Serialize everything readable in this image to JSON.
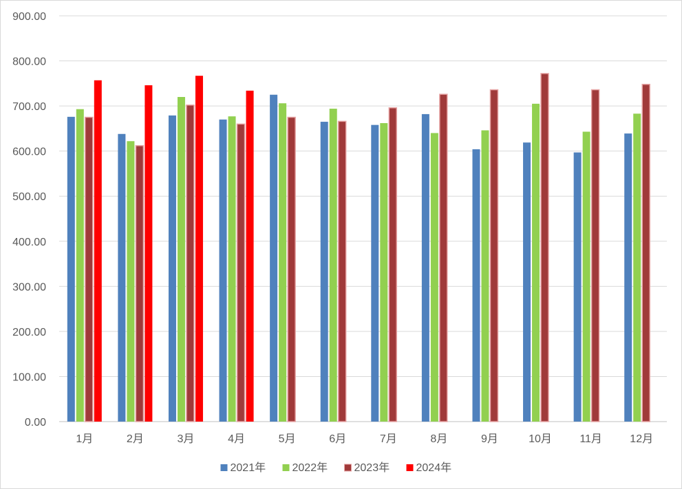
{
  "chart_data": {
    "type": "bar",
    "title": "",
    "xlabel": "",
    "ylabel": "",
    "ylim": [
      0,
      900
    ],
    "yticks": [
      "0.00",
      "100.00",
      "200.00",
      "300.00",
      "400.00",
      "500.00",
      "600.00",
      "700.00",
      "800.00",
      "900.00"
    ],
    "grid": true,
    "legend_position": "bottom",
    "categories": [
      "1月",
      "2月",
      "3月",
      "4月",
      "5月",
      "6月",
      "7月",
      "8月",
      "9月",
      "10月",
      "11月",
      "12月"
    ],
    "series": [
      {
        "name": "2021年",
        "color": "#4f81bd",
        "values": [
          676,
          638,
          679,
          670,
          725,
          665,
          658,
          682,
          604,
          619,
          597,
          639
        ]
      },
      {
        "name": "2022年",
        "color": "#92d050",
        "values": [
          693,
          622,
          720,
          677,
          706,
          694,
          662,
          640,
          646,
          705,
          643,
          683
        ]
      },
      {
        "name": "2023年",
        "color": "#a03a3a",
        "values": [
          675,
          612,
          702,
          660,
          675,
          666,
          696,
          726,
          736,
          772,
          736,
          748
        ]
      },
      {
        "name": "2024年",
        "color": "#ff0000",
        "values": [
          757,
          746,
          767,
          734,
          null,
          null,
          null,
          null,
          null,
          null,
          null,
          null
        ]
      }
    ]
  }
}
